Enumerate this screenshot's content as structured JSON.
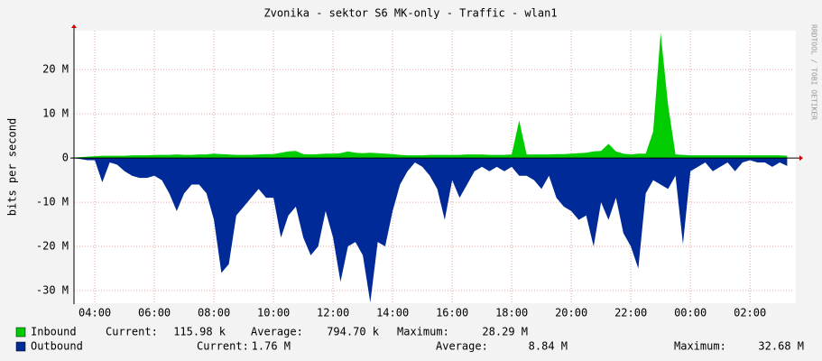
{
  "chart_data": {
    "type": "area",
    "title": "Zvonika - sektor S6 MK-only - Traffic - wlan1",
    "y_label": "bits per second",
    "watermark": "RRDTOOL / TOBI OETIKER",
    "x": [
      3.25,
      3.5,
      3.75,
      4,
      4.25,
      4.5,
      4.75,
      5,
      5.25,
      5.5,
      5.75,
      6,
      6.25,
      6.5,
      6.75,
      7,
      7.25,
      7.5,
      7.75,
      8,
      8.25,
      8.5,
      8.75,
      9,
      9.25,
      9.5,
      9.75,
      10,
      10.25,
      10.5,
      10.75,
      11,
      11.25,
      11.5,
      11.75,
      12,
      12.25,
      12.5,
      12.75,
      13,
      13.25,
      13.5,
      13.75,
      14,
      14.25,
      14.5,
      14.75,
      15,
      15.25,
      15.5,
      15.75,
      16,
      16.25,
      16.5,
      16.75,
      17,
      17.25,
      17.5,
      17.75,
      18,
      18.25,
      18.5,
      18.75,
      19,
      19.25,
      19.5,
      19.75,
      20,
      20.25,
      20.5,
      20.75,
      21,
      21.25,
      21.5,
      21.75,
      22,
      22.25,
      22.5,
      22.75,
      23,
      23.25,
      23.5,
      23.75,
      24,
      24.25,
      24.5,
      24.75,
      25,
      25.25,
      25.5,
      25.75,
      26,
      26.25,
      26.5,
      26.75,
      27,
      27.25
    ],
    "series": [
      {
        "name": "Inbound",
        "color": "#00cc00",
        "values": [
          0.1,
          0.2,
          0.3,
          0.4,
          0.5,
          0.5,
          0.5,
          0.5,
          0.6,
          0.6,
          0.6,
          0.7,
          0.7,
          0.7,
          0.8,
          0.7,
          0.7,
          0.8,
          0.8,
          1,
          0.9,
          0.8,
          0.7,
          0.7,
          0.7,
          0.8,
          0.9,
          0.9,
          1.2,
          1.5,
          1.6,
          0.9,
          0.8,
          0.9,
          1,
          1,
          1.1,
          1.5,
          1.2,
          1.1,
          1.2,
          1.1,
          1,
          0.9,
          0.7,
          0.6,
          0.6,
          0.6,
          0.7,
          0.7,
          0.7,
          0.7,
          0.7,
          0.8,
          0.8,
          0.8,
          0.7,
          0.7,
          0.7,
          0.8,
          8.5,
          0.8,
          0.8,
          0.8,
          0.8,
          0.9,
          0.9,
          1,
          1.1,
          1.2,
          1.5,
          1.6,
          3.2,
          1.5,
          1,
          0.8,
          1,
          1,
          6,
          28.3,
          12,
          0.8,
          0.7,
          0.6,
          0.6,
          0.6,
          0.6,
          0.6,
          0.6,
          0.6,
          0.6,
          0.6,
          0.6,
          0.6,
          0.6,
          0.6,
          0.5
        ]
      },
      {
        "name": "Outbound",
        "color": "#002a97",
        "values": [
          0,
          -0.2,
          -0.5,
          -0.5,
          -5.5,
          -1,
          -1.5,
          -3,
          -4,
          -4.5,
          -4.5,
          -4,
          -5,
          -8,
          -12,
          -8,
          -6,
          -6,
          -8,
          -14,
          -26,
          -24,
          -13,
          -11,
          -9,
          -7,
          -9,
          -9,
          -18,
          -13,
          -11,
          -18,
          -22,
          -20,
          -12,
          -18,
          -28,
          -20,
          -19,
          -22,
          -32.7,
          -19,
          -20,
          -12,
          -6,
          -3,
          -1,
          -2,
          -4,
          -7,
          -14,
          -5,
          -9,
          -6,
          -3,
          -2,
          -3,
          -2,
          -3,
          -2,
          -4,
          -4,
          -5,
          -7,
          -4,
          -9,
          -11,
          -12,
          -14,
          -13,
          -20,
          -10,
          -14,
          -9,
          -17,
          -20,
          -25,
          -8,
          -5,
          -6,
          -7,
          -4,
          -19.5,
          -3,
          -2,
          -1,
          -3,
          -2,
          -1,
          -3,
          -1,
          -0.5,
          -1,
          -1,
          -2,
          -1,
          -1.8
        ]
      }
    ],
    "xlim": [
      3.3,
      27.48
    ],
    "xticks": [
      {
        "value": 4,
        "label": "04:00"
      },
      {
        "value": 6,
        "label": "06:00"
      },
      {
        "value": 8,
        "label": "08:00"
      },
      {
        "value": 10,
        "label": "10:00"
      },
      {
        "value": 12,
        "label": "12:00"
      },
      {
        "value": 14,
        "label": "14:00"
      },
      {
        "value": 16,
        "label": "16:00"
      },
      {
        "value": 18,
        "label": "18:00"
      },
      {
        "value": 20,
        "label": "20:00"
      },
      {
        "value": 22,
        "label": "22:00"
      },
      {
        "value": 24,
        "label": "00:00"
      },
      {
        "value": 26,
        "label": "02:00"
      }
    ],
    "ylim": [
      -32.65,
      28.2
    ],
    "yticks": [
      {
        "value": -30,
        "label": "-30 M"
      },
      {
        "value": -20,
        "label": "-20 M"
      },
      {
        "value": -10,
        "label": "-10 M"
      },
      0,
      {
        "value": 10,
        "label": "10 M"
      },
      {
        "value": 20,
        "label": "20 M"
      }
    ],
    "grid": true,
    "legend": [
      [
        "Current:",
        "115.98 k",
        "Average:",
        "794.70 k",
        "Maximum:",
        "28.29 M"
      ],
      [
        "Current:",
        "1.76 M",
        "Average:",
        "8.84 M",
        "Maximum:",
        "32.68 M"
      ]
    ]
  }
}
